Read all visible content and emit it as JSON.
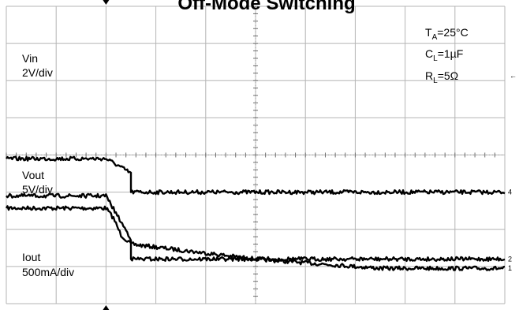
{
  "chart_data": {
    "type": "line",
    "title": "Off-Mode Switching",
    "grid": true,
    "x_divisions": 10,
    "y_divisions": 8,
    "x_trigger_division": 2,
    "conditions": {
      "ta": {
        "sym": "T",
        "sub": "A",
        "rest": "=25°C"
      },
      "cl": {
        "sym": "C",
        "sub": "L",
        "rest": "=1µF"
      },
      "rl": {
        "sym": "R",
        "sub": "L",
        "rest": "=5Ω"
      }
    },
    "series": [
      {
        "name": "Vin",
        "scale": "2V/div",
        "marker": "1",
        "color": "#000000",
        "points": [
          [
            0,
            2.57
          ],
          [
            2.0,
            2.57
          ],
          [
            2.15,
            2.3
          ],
          [
            2.3,
            1.85
          ],
          [
            2.5,
            1.6
          ],
          [
            5,
            1.2
          ],
          [
            7.5,
            0.95
          ],
          [
            10,
            0.95
          ]
        ]
      },
      {
        "name": "Vout",
        "scale": "5V/div",
        "marker": "4",
        "color": "#000000",
        "points": [
          [
            0,
            3.9
          ],
          [
            2.0,
            3.9
          ],
          [
            2.2,
            3.75
          ],
          [
            2.45,
            3.55
          ],
          [
            2.5,
            3.52
          ],
          [
            2.5,
            3.0
          ],
          [
            10,
            3.0
          ]
        ]
      },
      {
        "name": "Iout",
        "scale": "500mA/div",
        "marker": "2",
        "color": "#000000",
        "points": [
          [
            0,
            2.9
          ],
          [
            2.0,
            2.9
          ],
          [
            2.15,
            2.55
          ],
          [
            2.3,
            2.2
          ],
          [
            2.5,
            1.75
          ],
          [
            2.5,
            1.2
          ],
          [
            10,
            1.2
          ]
        ]
      }
    ]
  }
}
